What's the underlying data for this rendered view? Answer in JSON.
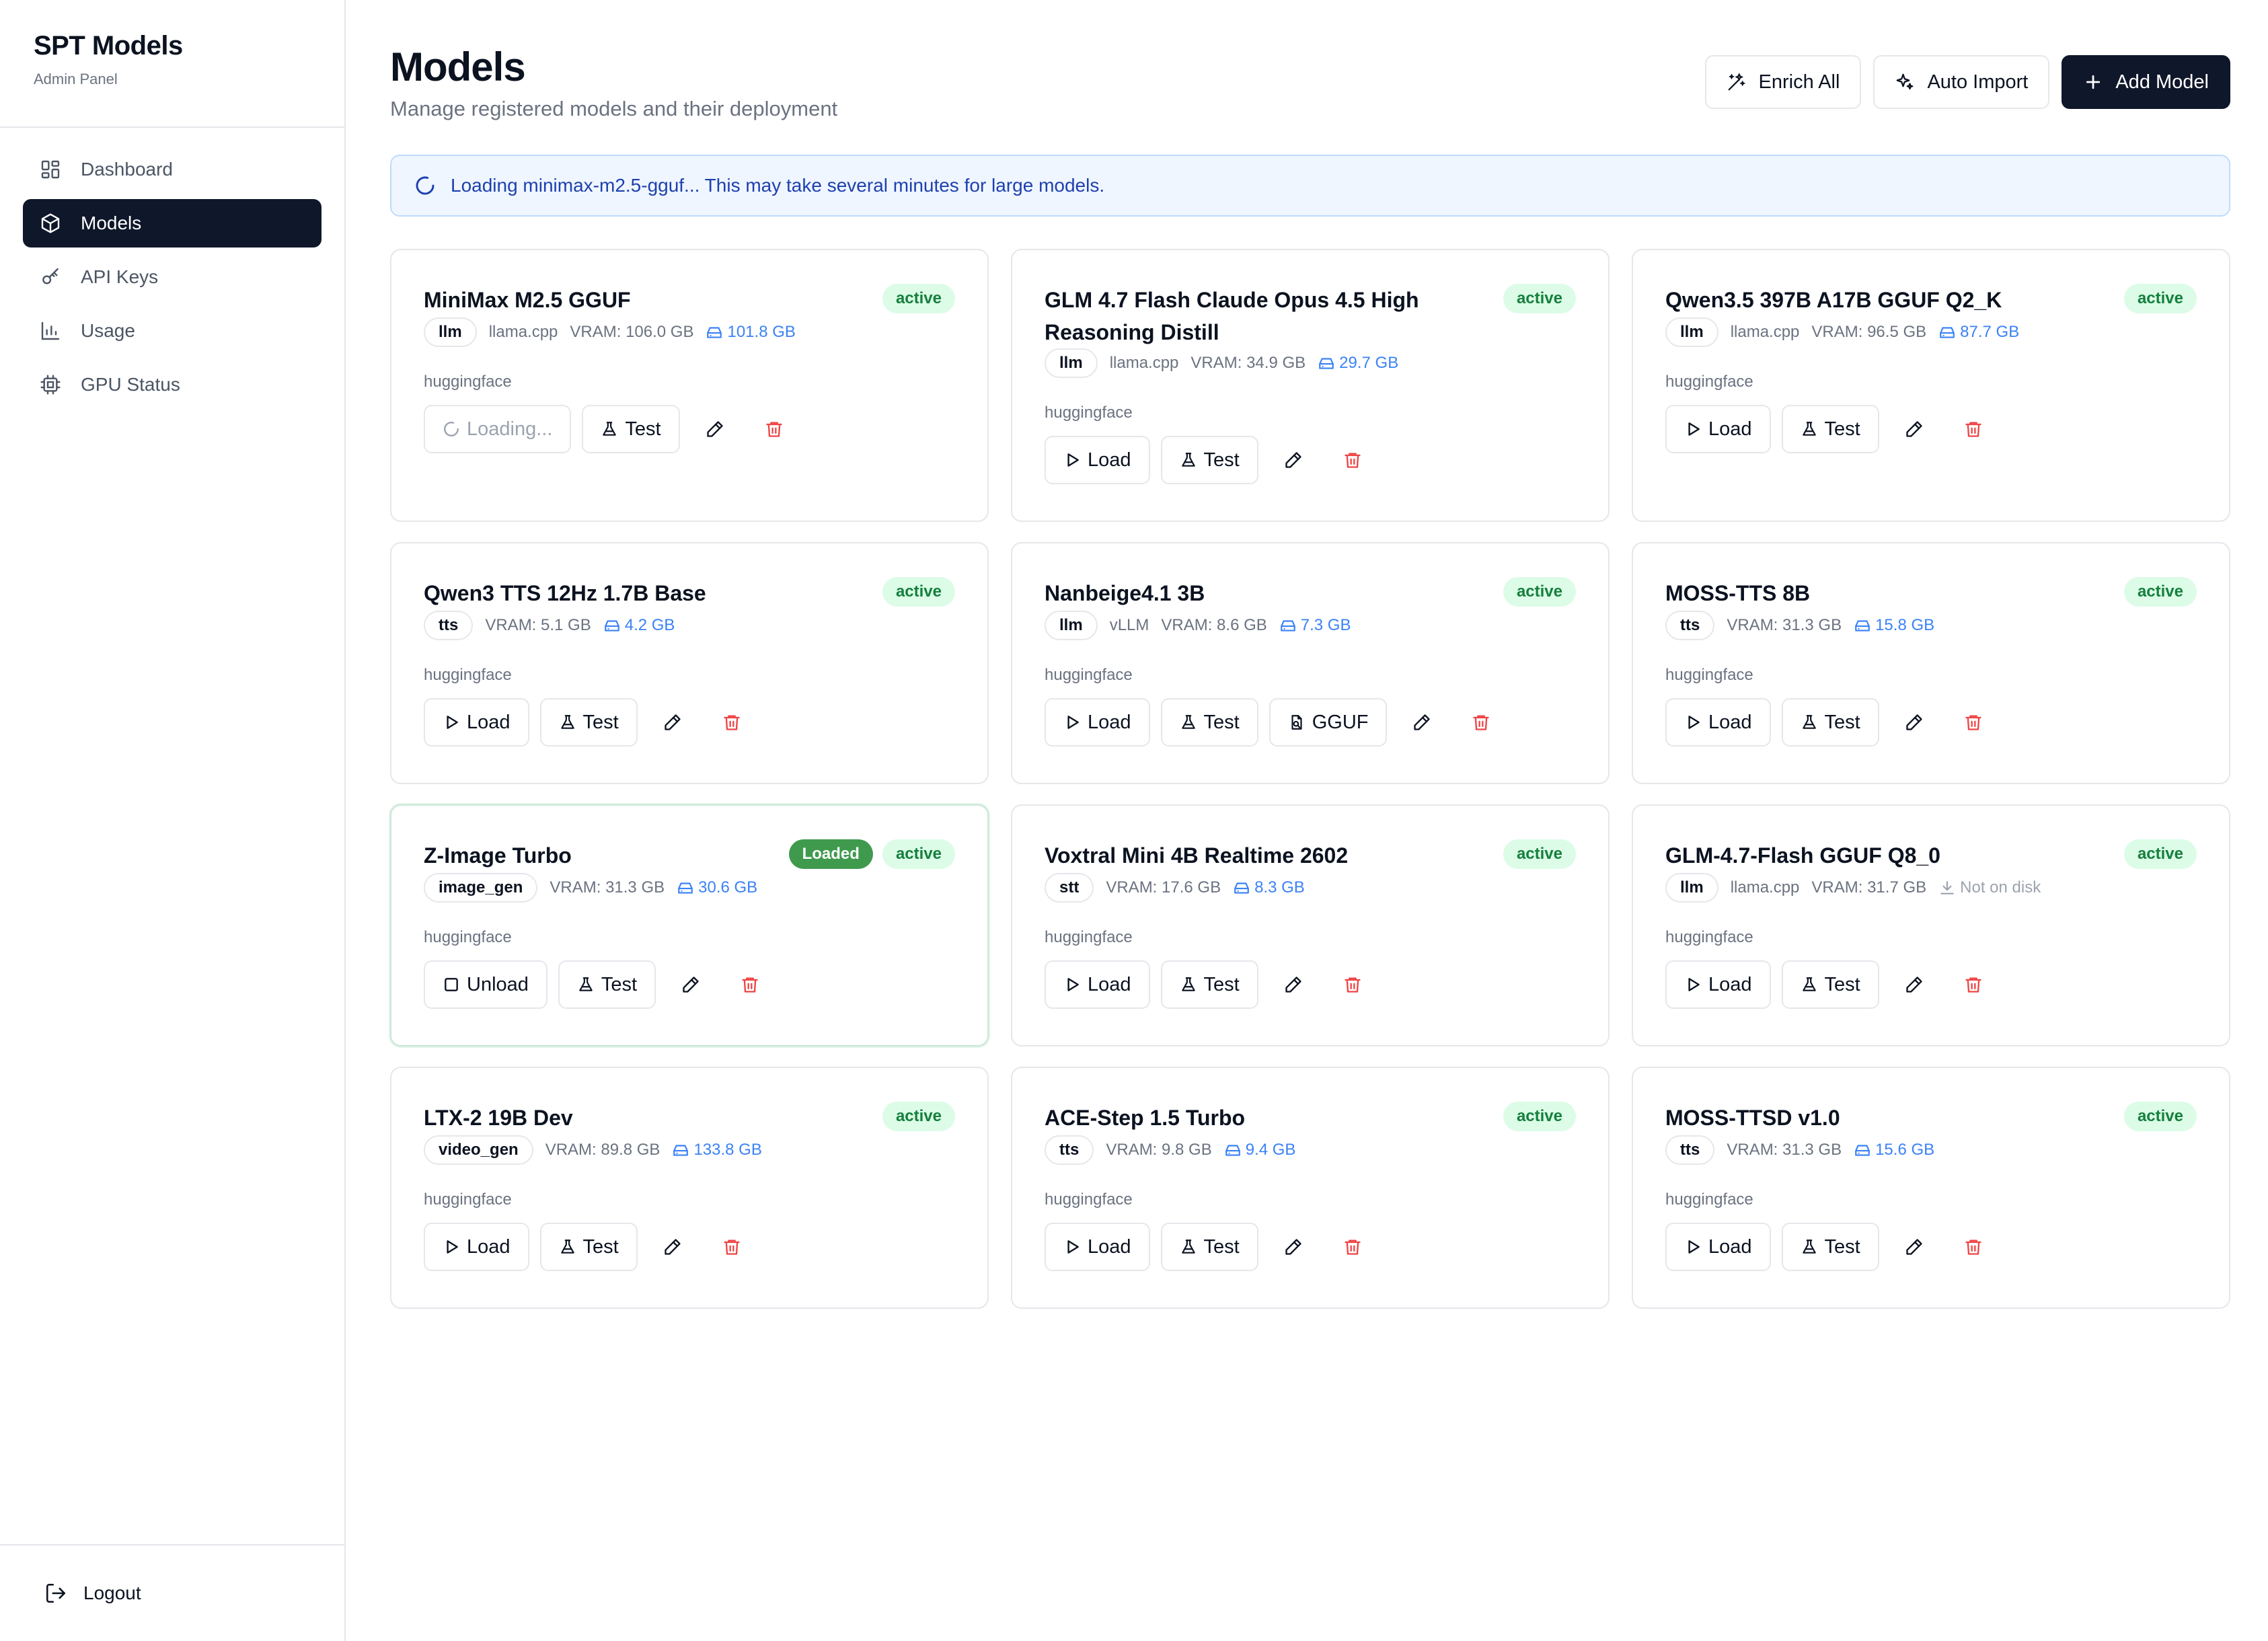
{
  "sidebar": {
    "title": "SPT Models",
    "subtitle": "Admin Panel",
    "items": [
      {
        "label": "Dashboard",
        "icon": "dashboard-icon",
        "active": false
      },
      {
        "label": "Models",
        "icon": "box-icon",
        "active": true
      },
      {
        "label": "API Keys",
        "icon": "key-icon",
        "active": false
      },
      {
        "label": "Usage",
        "icon": "bar-chart-icon",
        "active": false
      },
      {
        "label": "GPU Status",
        "icon": "cpu-icon",
        "active": false
      }
    ],
    "logout_label": "Logout"
  },
  "header": {
    "title": "Models",
    "subtitle": "Manage registered models and their deployment",
    "enrich_label": "Enrich All",
    "auto_import_label": "Auto Import",
    "add_label": "Add Model"
  },
  "banner": {
    "text": "Loading minimax-m2.5-gguf... This may take several minutes for large models."
  },
  "labels": {
    "load": "Load",
    "unload": "Unload",
    "test": "Test",
    "loading": "Loading...",
    "gguf": "GGUF"
  },
  "colors": {
    "accent": "#0f172a",
    "active_bg": "#dcfce7",
    "active_text": "#15803d",
    "loaded_bg": "#3f9a4e",
    "size_blue": "#3b82f6",
    "delete_red": "#ef4444",
    "banner_bg": "#eff6ff"
  },
  "models": [
    {
      "name": "MiniMax M2.5 GGUF",
      "status": "active",
      "loaded": "",
      "type": "llm",
      "backend": "llama.cpp",
      "vram": "VRAM: 106.0 GB",
      "size": "101.8 GB",
      "on_disk": true,
      "source": "huggingface",
      "primary": "loading",
      "gguf": false
    },
    {
      "name": "GLM 4.7 Flash Claude Opus 4.5 High Reasoning Distill",
      "status": "active",
      "loaded": "",
      "type": "llm",
      "backend": "llama.cpp",
      "vram": "VRAM: 34.9 GB",
      "size": "29.7 GB",
      "on_disk": true,
      "source": "huggingface",
      "primary": "load",
      "gguf": false
    },
    {
      "name": "Qwen3.5 397B A17B GGUF Q2_K",
      "status": "active",
      "loaded": "",
      "type": "llm",
      "backend": "llama.cpp",
      "vram": "VRAM: 96.5 GB",
      "size": "87.7 GB",
      "on_disk": true,
      "source": "huggingface",
      "primary": "load",
      "gguf": false
    },
    {
      "name": "Qwen3 TTS 12Hz 1.7B Base",
      "status": "active",
      "loaded": "",
      "type": "tts",
      "backend": "",
      "vram": "VRAM: 5.1 GB",
      "size": "4.2 GB",
      "on_disk": true,
      "source": "huggingface",
      "primary": "load",
      "gguf": false
    },
    {
      "name": "Nanbeige4.1 3B",
      "status": "active",
      "loaded": "",
      "type": "llm",
      "backend": "vLLM",
      "vram": "VRAM: 8.6 GB",
      "size": "7.3 GB",
      "on_disk": true,
      "source": "huggingface",
      "primary": "load",
      "gguf": true
    },
    {
      "name": "MOSS-TTS 8B",
      "status": "active",
      "loaded": "",
      "type": "tts",
      "backend": "",
      "vram": "VRAM: 31.3 GB",
      "size": "15.8 GB",
      "on_disk": true,
      "source": "huggingface",
      "primary": "load",
      "gguf": false
    },
    {
      "name": "Z-Image Turbo",
      "status": "active",
      "loaded": "Loaded",
      "type": "image_gen",
      "backend": "",
      "vram": "VRAM: 31.3 GB",
      "size": "30.6 GB",
      "on_disk": true,
      "source": "huggingface",
      "primary": "unload",
      "gguf": false
    },
    {
      "name": "Voxtral Mini 4B Realtime 2602",
      "status": "active",
      "loaded": "",
      "type": "stt",
      "backend": "",
      "vram": "VRAM: 17.6 GB",
      "size": "8.3 GB",
      "on_disk": true,
      "source": "huggingface",
      "primary": "load",
      "gguf": false
    },
    {
      "name": "GLM-4.7-Flash GGUF Q8_0",
      "status": "active",
      "loaded": "",
      "type": "llm",
      "backend": "llama.cpp",
      "vram": "VRAM: 31.7 GB",
      "size": "Not on disk",
      "on_disk": false,
      "source": "huggingface",
      "primary": "load",
      "gguf": false
    },
    {
      "name": "LTX-2 19B Dev",
      "status": "active",
      "loaded": "",
      "type": "video_gen",
      "backend": "",
      "vram": "VRAM: 89.8 GB",
      "size": "133.8 GB",
      "on_disk": true,
      "source": "huggingface",
      "primary": "load",
      "gguf": false
    },
    {
      "name": "ACE-Step 1.5 Turbo",
      "status": "active",
      "loaded": "",
      "type": "tts",
      "backend": "",
      "vram": "VRAM: 9.8 GB",
      "size": "9.4 GB",
      "on_disk": true,
      "source": "huggingface",
      "primary": "load",
      "gguf": false
    },
    {
      "name": "MOSS-TTSD v1.0",
      "status": "active",
      "loaded": "",
      "type": "tts",
      "backend": "",
      "vram": "VRAM: 31.3 GB",
      "size": "15.6 GB",
      "on_disk": true,
      "source": "huggingface",
      "primary": "load",
      "gguf": false
    }
  ]
}
